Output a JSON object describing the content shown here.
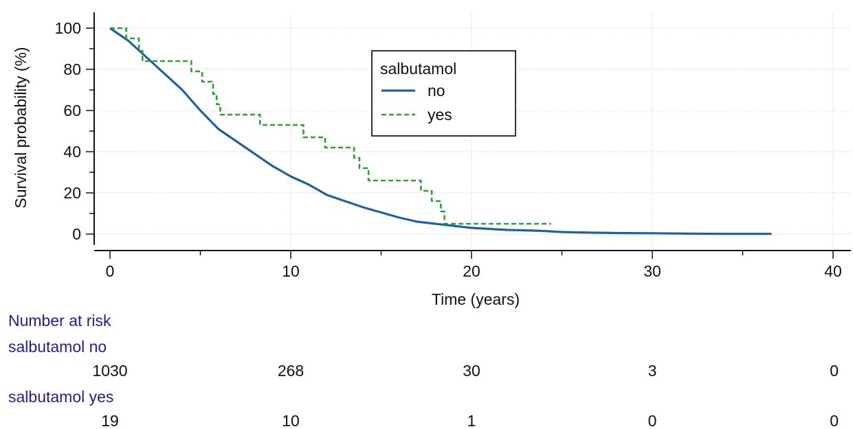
{
  "chart_data": {
    "type": "line",
    "xlabel": "Time (years)",
    "ylabel": "Survival probability (%)",
    "xlim": [
      0,
      40
    ],
    "ylim": [
      0,
      100
    ],
    "x_ticks": [
      "0",
      "10",
      "20",
      "30",
      "40"
    ],
    "y_ticks": [
      "0",
      "20",
      "40",
      "60",
      "80",
      "100"
    ],
    "grid": true,
    "legend": {
      "title": "salbutamol",
      "placement": "top-center",
      "entries": [
        "no",
        "yes"
      ]
    },
    "series": [
      {
        "name": "no",
        "color": "#1f5fa8",
        "style": "solid",
        "x": [
          0,
          1,
          2,
          3,
          4,
          5,
          6,
          7,
          8,
          9,
          10,
          11,
          12,
          13,
          14,
          15,
          16,
          17,
          18,
          19,
          20,
          21,
          22,
          23,
          24,
          25,
          26,
          28,
          30,
          32,
          34,
          36.6
        ],
        "y": [
          100,
          94,
          86,
          78,
          70,
          60,
          51,
          45,
          39,
          33,
          28,
          24,
          19,
          16,
          13,
          10.5,
          8,
          6,
          5,
          4,
          3,
          2.5,
          2,
          1.8,
          1.5,
          1,
          0.8,
          0.5,
          0.4,
          0.2,
          0.1,
          0.1
        ]
      },
      {
        "name": "yes",
        "color": "#2ea02e",
        "style": "dashed",
        "step": true,
        "x": [
          0,
          0.9,
          1.6,
          1.8,
          4.5,
          5.1,
          5.7,
          5.9,
          6.1,
          8.3,
          10.7,
          11.9,
          13.5,
          13.8,
          14.3,
          17.2,
          17.8,
          18.3,
          18.5,
          24.4
        ],
        "y": [
          100,
          95,
          89,
          84,
          79,
          74,
          68,
          63,
          58,
          53,
          47,
          42,
          37,
          32,
          26,
          21,
          16,
          11,
          5,
          5
        ]
      }
    ]
  },
  "risk_table": {
    "title": "Number at risk",
    "groups": [
      {
        "label": "salbutamol no",
        "values": [
          "1030",
          "268",
          "30",
          "3",
          "0"
        ]
      },
      {
        "label": "salbutamol yes",
        "values": [
          "19",
          "10",
          "1",
          "0",
          "0"
        ]
      }
    ],
    "times": [
      0,
      10,
      20,
      30,
      40
    ]
  }
}
